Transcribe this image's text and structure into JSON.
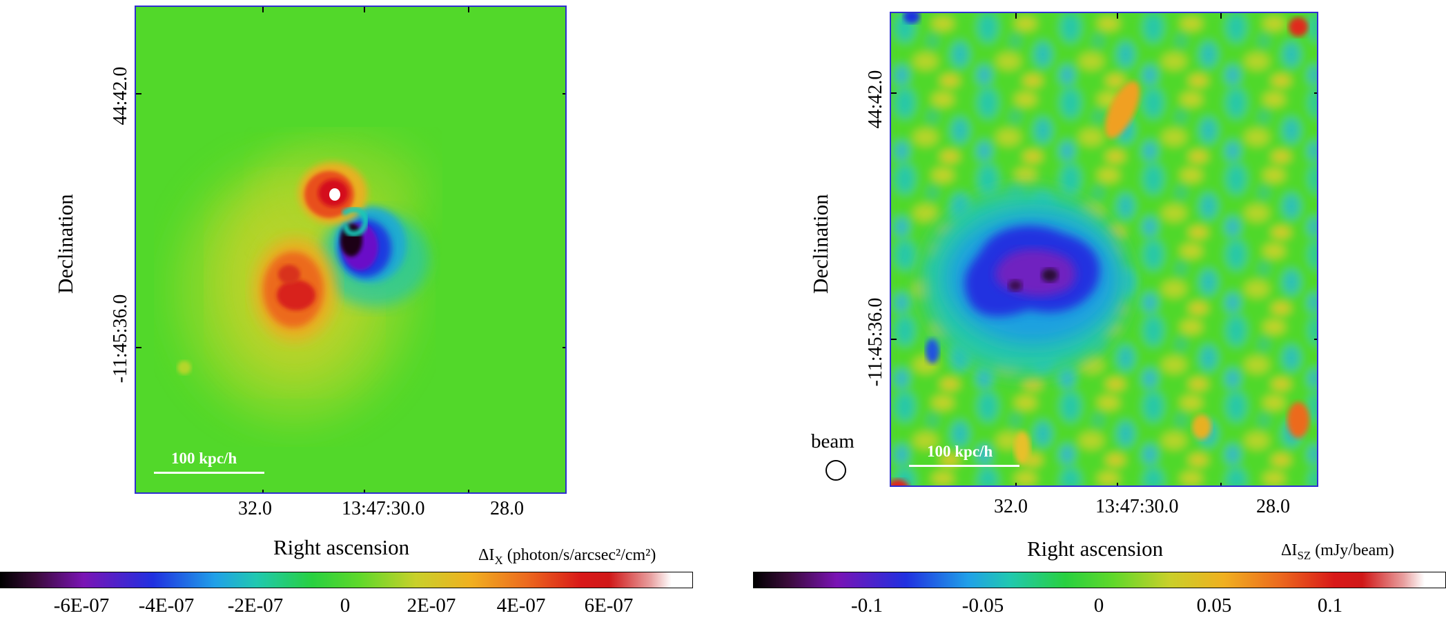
{
  "left_panel": {
    "y_ticks": [
      "44:42.0",
      "-11:45:36.0"
    ],
    "y_label": "Declination",
    "x_ticks": [
      "32.0",
      "13:47:30.0",
      "28.0"
    ],
    "x_label": "Right ascension",
    "scalebar": "100 kpc/h",
    "colorbar": {
      "title_prefix": "ΔI",
      "title_sub": "X",
      "title_suffix": " (photon/s/arcsec²/cm²)",
      "labels": [
        "-6E-07",
        "-4E-07",
        "-2E-07",
        "0",
        "2E-07",
        "4E-07",
        "6E-07"
      ]
    }
  },
  "right_panel": {
    "y_ticks": [
      "44:42.0",
      "-11:45:36.0"
    ],
    "y_label": "Declination",
    "x_ticks": [
      "32.0",
      "13:47:30.0",
      "28.0"
    ],
    "x_label": "Right ascension",
    "scalebar": "100 kpc/h",
    "beam_label": "beam",
    "colorbar": {
      "title_prefix": "ΔI",
      "title_sub": "SZ",
      "title_suffix": " (mJy/beam)",
      "labels": [
        "-0.1",
        "-0.05",
        "0",
        "0.05",
        "0.1"
      ]
    }
  }
}
